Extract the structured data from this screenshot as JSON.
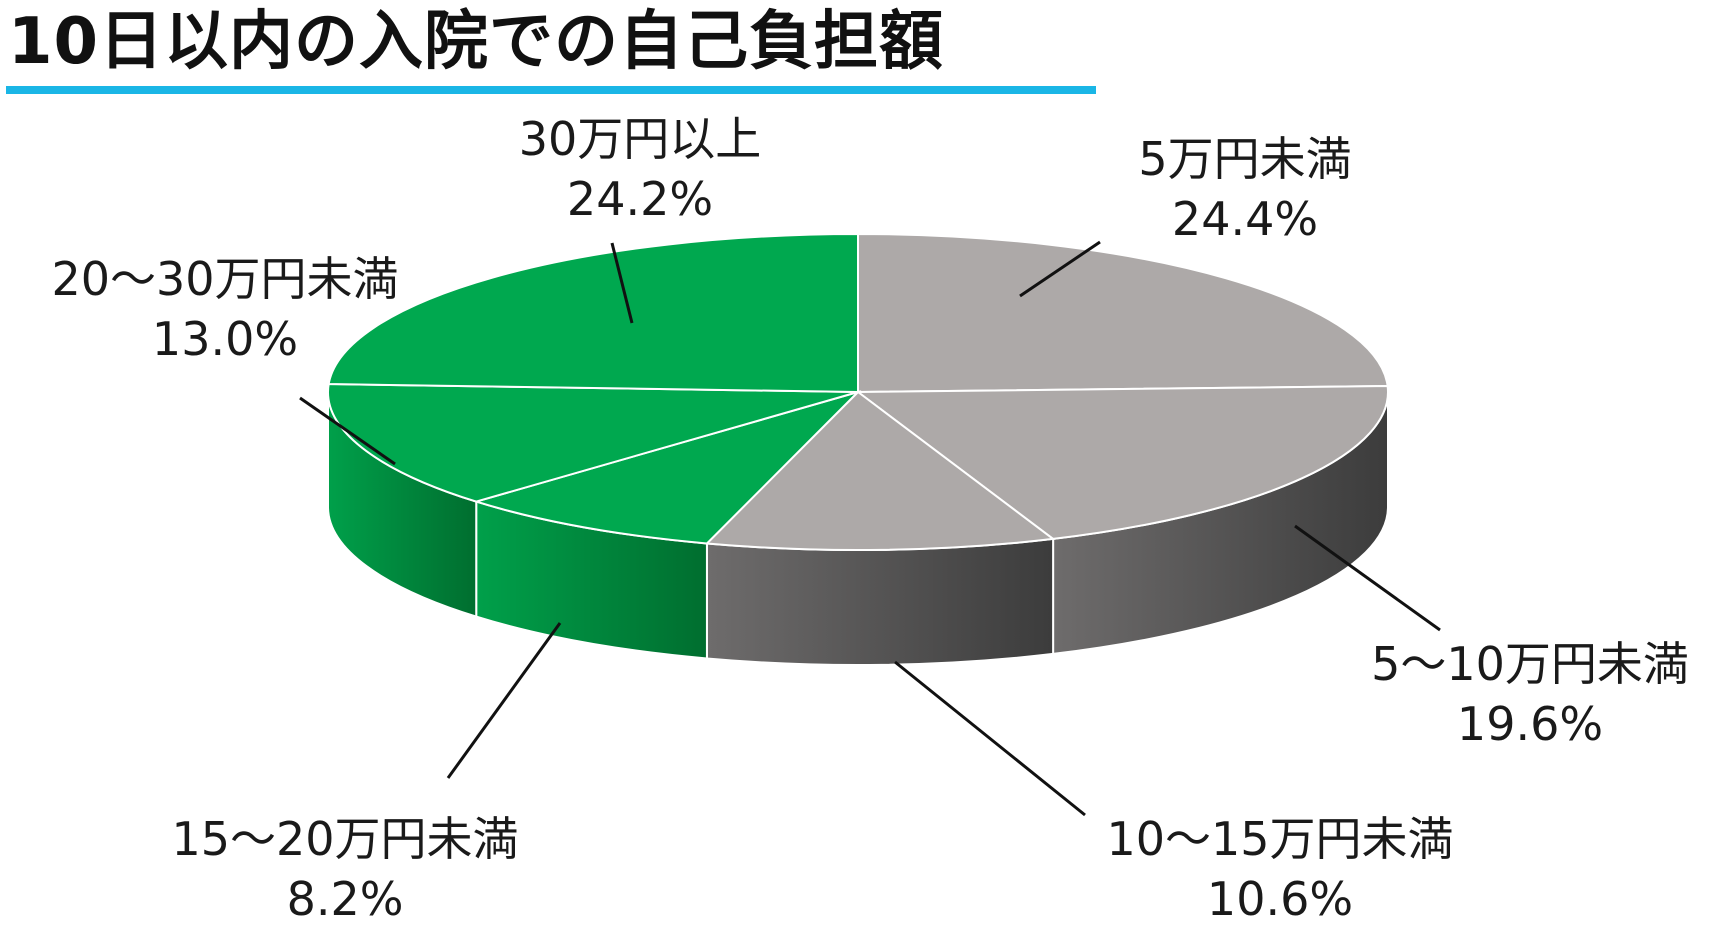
{
  "title": "10日以内の入院での自己負担額",
  "colors": {
    "accent_underline": "#1ab6e6",
    "gray_top": "#ada9a8",
    "gray_side_light": "#6e6c6c",
    "gray_side_dark": "#414141",
    "green_top": "#00a84f",
    "green_side_light": "#009244",
    "green_side_dark": "#007331",
    "edge": "#ffffff"
  },
  "chart_data": {
    "type": "pie",
    "style": "3d",
    "title": "10日以内の入院での自己負担額",
    "unit": "%",
    "slices": [
      {
        "label": "5万円未満",
        "value": 24.4,
        "value_text": "24.4%",
        "color_group": "gray"
      },
      {
        "label": "5～10万円未満",
        "value": 19.6,
        "value_text": "19.6%",
        "color_group": "gray"
      },
      {
        "label": "10～15万円未満",
        "value": 10.6,
        "value_text": "10.6%",
        "color_group": "gray"
      },
      {
        "label": "15～20万円未満",
        "value": 8.2,
        "value_text": "8.2%",
        "color_group": "green"
      },
      {
        "label": "20～30万円未満",
        "value": 13.0,
        "value_text": "13.0%",
        "color_group": "green"
      },
      {
        "label": "30万円以上",
        "value": 24.2,
        "value_text": "24.2%",
        "color_group": "green"
      }
    ]
  }
}
